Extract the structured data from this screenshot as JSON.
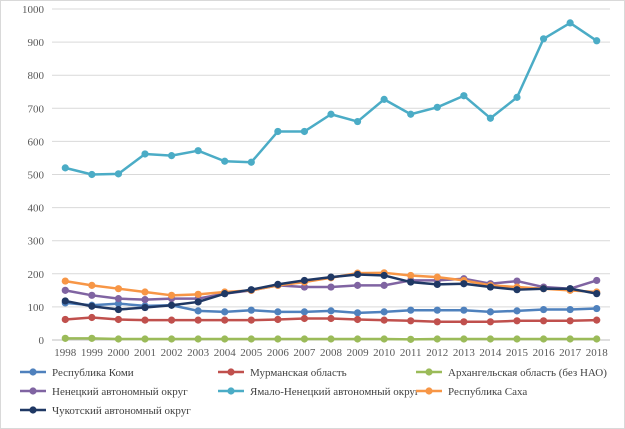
{
  "chart_data": {
    "type": "line",
    "title": "",
    "xlabel": "",
    "ylabel": "",
    "ylim": [
      0,
      1000
    ],
    "y_ticks": [
      "0",
      "100",
      "200",
      "300",
      "400",
      "500",
      "600",
      "700",
      "800",
      "900",
      "1000"
    ],
    "categories": [
      "1998",
      "1999",
      "2000",
      "2001",
      "2002",
      "2003",
      "2004",
      "2005",
      "2006",
      "2007",
      "2008",
      "2009",
      "2010",
      "2011",
      "2012",
      "2013",
      "2014",
      "2015",
      "2016",
      "2017",
      "2018"
    ],
    "legend_position": "bottom",
    "grid": true,
    "series": [
      {
        "name": "Республика Коми",
        "color": "#4f81bd",
        "values": [
          112,
          105,
          110,
          103,
          105,
          88,
          85,
          90,
          85,
          85,
          88,
          82,
          85,
          90,
          90,
          90,
          85,
          88,
          92,
          92,
          95
        ]
      },
      {
        "name": "Мурманская область",
        "color": "#c0504d",
        "values": [
          62,
          68,
          62,
          60,
          60,
          60,
          60,
          60,
          62,
          65,
          65,
          62,
          60,
          58,
          55,
          55,
          55,
          58,
          58,
          58,
          60
        ]
      },
      {
        "name": "Архангельская область (без НАО)",
        "color": "#9bbb59",
        "values": [
          5,
          5,
          3,
          3,
          3,
          3,
          3,
          3,
          3,
          3,
          3,
          3,
          3,
          2,
          3,
          3,
          3,
          3,
          3,
          3,
          3
        ]
      },
      {
        "name": "Ненецкий автономный округ",
        "color": "#8064a2",
        "values": [
          150,
          135,
          125,
          122,
          125,
          125,
          140,
          150,
          165,
          160,
          160,
          165,
          165,
          180,
          180,
          185,
          170,
          178,
          160,
          155,
          180
        ]
      },
      {
        "name": "Ямало-Ненецкий автономный округ",
        "color": "#4bacc6",
        "values": [
          520,
          500,
          502,
          562,
          557,
          572,
          540,
          537,
          630,
          630,
          682,
          660,
          727,
          682,
          703,
          738,
          670,
          733,
          910,
          958,
          904
        ]
      },
      {
        "name": "Республика Саха",
        "color": "#f79646",
        "values": [
          178,
          165,
          155,
          145,
          135,
          138,
          145,
          150,
          165,
          175,
          188,
          202,
          203,
          195,
          190,
          180,
          165,
          160,
          155,
          150,
          145
        ]
      },
      {
        "name": "Чукотский автономный округ",
        "color": "#1f3864",
        "values": [
          118,
          102,
          92,
          98,
          105,
          115,
          140,
          152,
          168,
          180,
          190,
          198,
          195,
          175,
          168,
          170,
          160,
          152,
          155,
          155,
          140
        ]
      }
    ]
  }
}
